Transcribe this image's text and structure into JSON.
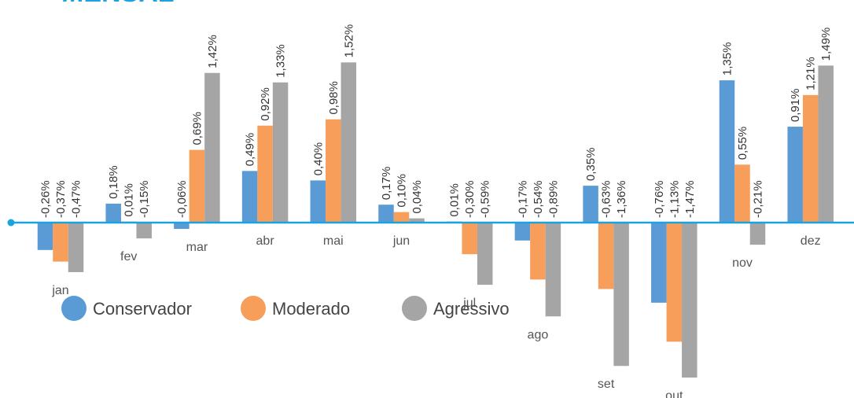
{
  "chart_data": {
    "type": "bar",
    "title": "MENSAL",
    "categories": [
      "jan",
      "fev",
      "mar",
      "abr",
      "mai",
      "jun",
      "jul",
      "ago",
      "set",
      "out",
      "nov",
      "dez"
    ],
    "series": [
      {
        "name": "Conservador",
        "color": "#5b9bd5",
        "values": [
          -0.26,
          0.18,
          -0.06,
          0.49,
          0.4,
          0.17,
          0.01,
          -0.17,
          0.35,
          -0.76,
          1.35,
          0.91
        ],
        "value_labels": [
          "-0,26%",
          "0,18%",
          "-0,06%",
          "0,49%",
          "0,40%",
          "0,17%",
          "0,01%",
          "-0,17%",
          "0,35%",
          "-0,76%",
          "1,35%",
          "0,91%"
        ]
      },
      {
        "name": "Moderado",
        "color": "#f79e5b",
        "values": [
          -0.37,
          0.01,
          0.69,
          0.92,
          0.98,
          0.1,
          -0.3,
          -0.54,
          -0.63,
          -1.13,
          0.55,
          1.21
        ],
        "value_labels": [
          "-0,37%",
          "0,01%",
          "0,69%",
          "0,92%",
          "0,98%",
          "0,10%",
          "-0,30%",
          "-0,54%",
          "-0,63%",
          "-1,13%",
          "0,55%",
          "1,21%"
        ]
      },
      {
        "name": "Agressivo",
        "color": "#a5a5a5",
        "values": [
          -0.47,
          -0.15,
          1.42,
          1.33,
          1.52,
          0.04,
          -0.59,
          -0.89,
          -1.36,
          -1.47,
          -0.21,
          1.49
        ],
        "value_labels": [
          "-0,47%",
          "-0,15%",
          "1,42%",
          "1,33%",
          "1,52%",
          "0,04%",
          "-0,59%",
          "-0,89%",
          "-1,36%",
          "-1,47%",
          "-0,21%",
          "1,49%"
        ]
      }
    ]
  }
}
